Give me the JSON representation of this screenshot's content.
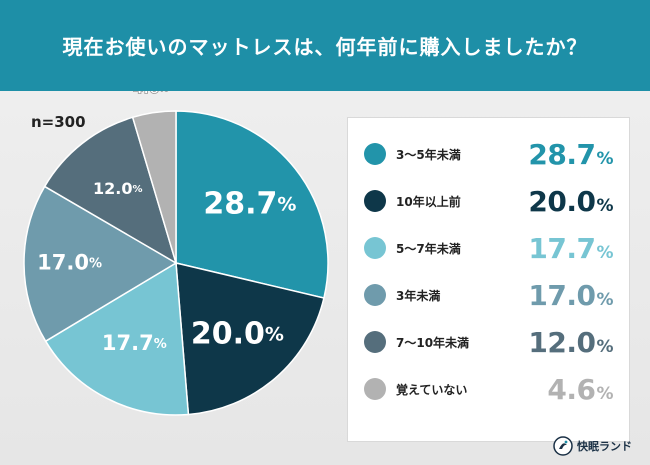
{
  "header": {
    "title": "現在お使いのマットレスは、何年前に購入しましたか？"
  },
  "sample": "n=300",
  "brand": {
    "name": "快眠ランド",
    "icon": "sleep-land-logo-icon"
  },
  "chart_data": {
    "type": "pie",
    "title": "現在お使いのマットレスは、何年前に購入しましたか？",
    "unit": "%",
    "slices": [
      {
        "label": "3〜5年未満",
        "value": 28.7,
        "display": "28.7",
        "color": "#2294aa"
      },
      {
        "label": "10年以上前",
        "value": 20.0,
        "display": "20.0",
        "color": "#0e3749"
      },
      {
        "label": "5〜7年未満",
        "value": 17.7,
        "display": "17.7",
        "color": "#77c5d3"
      },
      {
        "label": "3年未満",
        "value": 17.0,
        "display": "17.0",
        "color": "#6f9bac"
      },
      {
        "label": "7〜10年未満",
        "value": 12.0,
        "display": "12.0",
        "color": "#556e7c"
      },
      {
        "label": "覚えていない",
        "value": 4.6,
        "display": "4.6",
        "color": "#b2b2b2"
      }
    ],
    "legend_placement": "right"
  }
}
